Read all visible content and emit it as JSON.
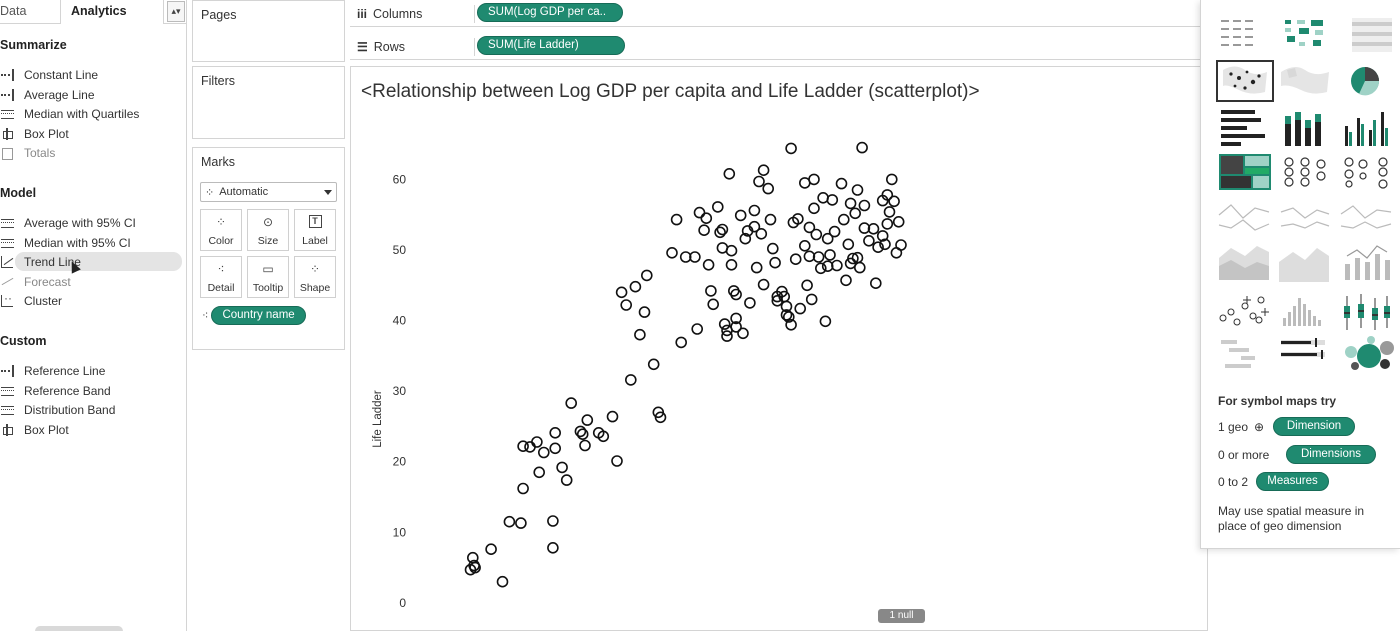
{
  "left_pane": {
    "tabs": {
      "data": "Data",
      "analytics": "Analytics"
    },
    "sections": [
      {
        "title": "Summarize",
        "items": [
          {
            "label": "Constant Line",
            "icon": "constant-line-icon",
            "dim": false
          },
          {
            "label": "Average Line",
            "icon": "average-line-icon",
            "dim": false
          },
          {
            "label": "Median with Quartiles",
            "icon": "median-quartiles-icon",
            "dim": false
          },
          {
            "label": "Box Plot",
            "icon": "box-plot-icon",
            "dim": false
          },
          {
            "label": "Totals",
            "icon": "totals-icon",
            "dim": true
          }
        ]
      },
      {
        "title": "Model",
        "items": [
          {
            "label": "Average with 95% CI",
            "icon": "average-ci-icon",
            "dim": false
          },
          {
            "label": "Median with 95% CI",
            "icon": "median-ci-icon",
            "dim": false
          },
          {
            "label": "Trend Line",
            "icon": "trend-line-icon",
            "dim": false
          },
          {
            "label": "Forecast",
            "icon": "forecast-icon",
            "dim": true
          },
          {
            "label": "Cluster",
            "icon": "cluster-icon",
            "dim": false
          }
        ]
      },
      {
        "title": "Custom",
        "items": [
          {
            "label": "Reference Line",
            "icon": "reference-line-icon",
            "dim": false
          },
          {
            "label": "Reference Band",
            "icon": "reference-band-icon",
            "dim": false
          },
          {
            "label": "Distribution Band",
            "icon": "distribution-band-icon",
            "dim": false
          },
          {
            "label": "Box Plot",
            "icon": "box-plot-icon",
            "dim": false
          }
        ]
      }
    ]
  },
  "cards": {
    "pages": "Pages",
    "filters": "Filters",
    "marks": {
      "title": "Marks",
      "type": "Automatic",
      "buttons": [
        "Color",
        "Size",
        "Label",
        "Detail",
        "Tooltip",
        "Shape"
      ],
      "detail_field": "Country name"
    }
  },
  "shelves": {
    "columns_label": "Columns",
    "columns_pill": "SUM(Log GDP per ca..",
    "rows_label": "Rows",
    "rows_pill": "SUM(Life Ladder)"
  },
  "view": {
    "title": "<Relationship between Log GDP per capita and Life Ladder (scatterplot)>",
    "null_badge": "1 null"
  },
  "show_me": {
    "hint_title": "For symbol maps try",
    "req1_count": "1 geo",
    "req1_pill": "Dimension",
    "req2_count": "0 or more",
    "req2_pill": "Dimensions",
    "req3_count": "0 to 2",
    "req3_pill": "Measures",
    "note_line1": "May use spatial measure in",
    "note_line2": "place of geo dimension",
    "accent": "#1f8a70"
  },
  "chart_data": {
    "type": "scatter",
    "title": "<Relationship between Log GDP per capita and Life Ladder (scatterplot)>",
    "xlabel": "",
    "ylabel": "Life Ladder",
    "ylim": [
      -2,
      67
    ],
    "yticks": [
      0,
      10,
      20,
      30,
      40,
      50,
      60
    ],
    "xlim": [
      0,
      100
    ],
    "grid": false,
    "marker": "hollow-circle",
    "points": [
      [
        6,
        4.7
      ],
      [
        6.5,
        6.4
      ],
      [
        7,
        5.0
      ],
      [
        6.8,
        5.3
      ],
      [
        10.5,
        7.6
      ],
      [
        13,
        3.0
      ],
      [
        14.5,
        11.5
      ],
      [
        17.5,
        16.2
      ],
      [
        17,
        11.3
      ],
      [
        17.5,
        22.2
      ],
      [
        19,
        22.1
      ],
      [
        20.5,
        22.8
      ],
      [
        21,
        18.5
      ],
      [
        22,
        21.3
      ],
      [
        24,
        11.6
      ],
      [
        24,
        7.8
      ],
      [
        24.5,
        24.1
      ],
      [
        24.5,
        21.9
      ],
      [
        26,
        19.2
      ],
      [
        27,
        17.4
      ],
      [
        28,
        28.3
      ],
      [
        30,
        24.3
      ],
      [
        30.5,
        23.9
      ],
      [
        31,
        22.3
      ],
      [
        31.5,
        25.9
      ],
      [
        34,
        24.1
      ],
      [
        35,
        23.6
      ],
      [
        37,
        26.4
      ],
      [
        38,
        20.1
      ],
      [
        39,
        44.0
      ],
      [
        40,
        42.2
      ],
      [
        41,
        31.6
      ],
      [
        42,
        44.8
      ],
      [
        43,
        38.0
      ],
      [
        44,
        41.2
      ],
      [
        44.5,
        46.4
      ],
      [
        46,
        33.8
      ],
      [
        47,
        27.0
      ],
      [
        47.5,
        26.3
      ],
      [
        50,
        49.6
      ],
      [
        51,
        54.3
      ],
      [
        52,
        36.9
      ],
      [
        53,
        49.0
      ],
      [
        55,
        49.0
      ],
      [
        55.5,
        38.8
      ],
      [
        56,
        55.3
      ],
      [
        57,
        52.8
      ],
      [
        57.5,
        54.5
      ],
      [
        58,
        47.9
      ],
      [
        58.5,
        44.2
      ],
      [
        59,
        42.3
      ],
      [
        60,
        56.1
      ],
      [
        60.5,
        52.5
      ],
      [
        61,
        52.9
      ],
      [
        61,
        50.3
      ],
      [
        61.5,
        39.5
      ],
      [
        62,
        38.6
      ],
      [
        62,
        37.8
      ],
      [
        62.5,
        60.8
      ],
      [
        63,
        49.9
      ],
      [
        63,
        47.9
      ],
      [
        63.5,
        44.2
      ],
      [
        64,
        40.3
      ],
      [
        64,
        43.7
      ],
      [
        64,
        39.1
      ],
      [
        65,
        54.9
      ],
      [
        65.5,
        38.2
      ],
      [
        66,
        51.6
      ],
      [
        66.5,
        52.7
      ],
      [
        67,
        42.5
      ],
      [
        68,
        55.6
      ],
      [
        68,
        53.3
      ],
      [
        68.5,
        47.5
      ],
      [
        69,
        59.7
      ],
      [
        69.5,
        52.3
      ],
      [
        70,
        61.3
      ],
      [
        70,
        45.1
      ],
      [
        71,
        58.7
      ],
      [
        71.5,
        54.3
      ],
      [
        72,
        50.2
      ],
      [
        72.5,
        48.2
      ],
      [
        73,
        42.8
      ],
      [
        73,
        43.4
      ],
      [
        74,
        44.1
      ],
      [
        74.5,
        43.4
      ],
      [
        75,
        42.0
      ],
      [
        75,
        40.8
      ],
      [
        75.5,
        40.5
      ],
      [
        76,
        64.4
      ],
      [
        76,
        39.4
      ],
      [
        76.5,
        53.9
      ],
      [
        77,
        48.7
      ],
      [
        77.5,
        54.4
      ],
      [
        78,
        41.7
      ],
      [
        79,
        50.6
      ],
      [
        79,
        59.5
      ],
      [
        79.5,
        45.0
      ],
      [
        80,
        53.2
      ],
      [
        80,
        49.1
      ],
      [
        80.5,
        43.0
      ],
      [
        81,
        55.9
      ],
      [
        81,
        60.0
      ],
      [
        81.5,
        52.2
      ],
      [
        82,
        49.0
      ],
      [
        82.5,
        47.4
      ],
      [
        83,
        57.4
      ],
      [
        83.5,
        39.9
      ],
      [
        84,
        51.6
      ],
      [
        84,
        47.7
      ],
      [
        84.5,
        49.3
      ],
      [
        85,
        57.1
      ],
      [
        85.5,
        52.6
      ],
      [
        86,
        47.8
      ],
      [
        87,
        59.4
      ],
      [
        87.5,
        54.3
      ],
      [
        88,
        45.7
      ],
      [
        88.5,
        50.8
      ],
      [
        89,
        48.1
      ],
      [
        89,
        56.6
      ],
      [
        89.5,
        48.8
      ],
      [
        90,
        55.2
      ],
      [
        90.5,
        48.9
      ],
      [
        90.5,
        58.5
      ],
      [
        91,
        47.5
      ],
      [
        91.5,
        64.5
      ],
      [
        92,
        53.1
      ],
      [
        92,
        56.3
      ],
      [
        93,
        51.3
      ],
      [
        94,
        53.0
      ],
      [
        94.5,
        45.3
      ],
      [
        95,
        50.4
      ],
      [
        96,
        57.0
      ],
      [
        96,
        52.0
      ],
      [
        96.5,
        50.8
      ],
      [
        97,
        57.8
      ],
      [
        97,
        53.7
      ],
      [
        97.5,
        55.4
      ],
      [
        98,
        60.0
      ],
      [
        98.5,
        56.9
      ],
      [
        99,
        49.6
      ],
      [
        99.5,
        54.0
      ],
      [
        100,
        50.7
      ]
    ]
  }
}
